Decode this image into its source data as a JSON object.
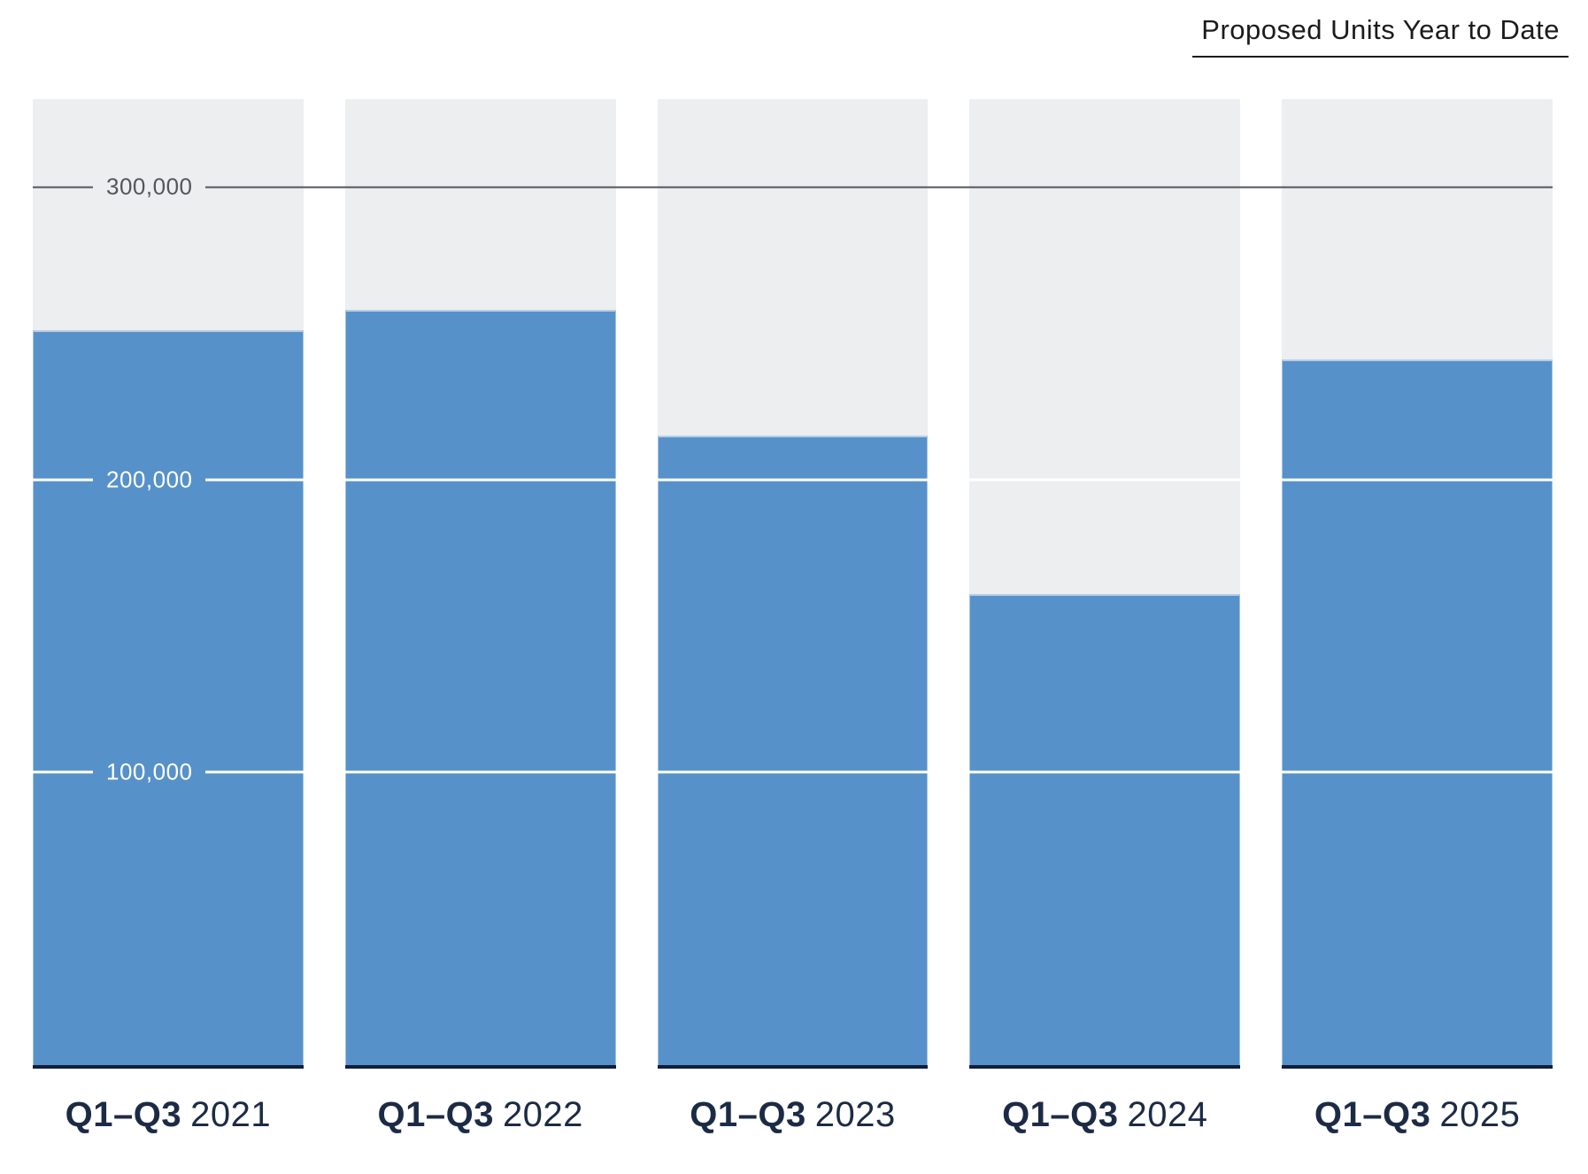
{
  "title": "Proposed Units Year to Date",
  "chart_data": {
    "type": "bar",
    "title": "Proposed Units Year to Date",
    "categories": [
      "Q1–Q3 2021",
      "Q1–Q3 2022",
      "Q1–Q3 2023",
      "Q1–Q3 2024",
      "Q1–Q3 2025"
    ],
    "values": [
      251000,
      258000,
      215000,
      161000,
      241000
    ],
    "xlabel": "",
    "ylabel": "",
    "ylim": [
      0,
      330000
    ],
    "track_max": 330000,
    "grid": "horizontal",
    "legend": "none",
    "y_ticks": [
      {
        "value": 300000,
        "label": "300,000",
        "variant": "dark"
      },
      {
        "value": 200000,
        "label": "200,000",
        "variant": "light"
      },
      {
        "value": 100000,
        "label": "100,000",
        "variant": "light"
      }
    ],
    "columns": [
      {
        "period": "Q1–Q3",
        "year": "2021",
        "value": 251000
      },
      {
        "period": "Q1–Q3",
        "year": "2022",
        "value": 258000
      },
      {
        "period": "Q1–Q3",
        "year": "2023",
        "value": 215000
      },
      {
        "period": "Q1–Q3",
        "year": "2024",
        "value": 161000
      },
      {
        "period": "Q1–Q3",
        "year": "2025",
        "value": 241000
      }
    ],
    "colors": {
      "bar": "#5791ca",
      "track": "#edeef0",
      "dark_tick": "#54565e",
      "light_tick": "#ffffff",
      "category_text": "#1c2b45",
      "baseline": "#111f38",
      "title_text": "#1b1b1b"
    }
  }
}
